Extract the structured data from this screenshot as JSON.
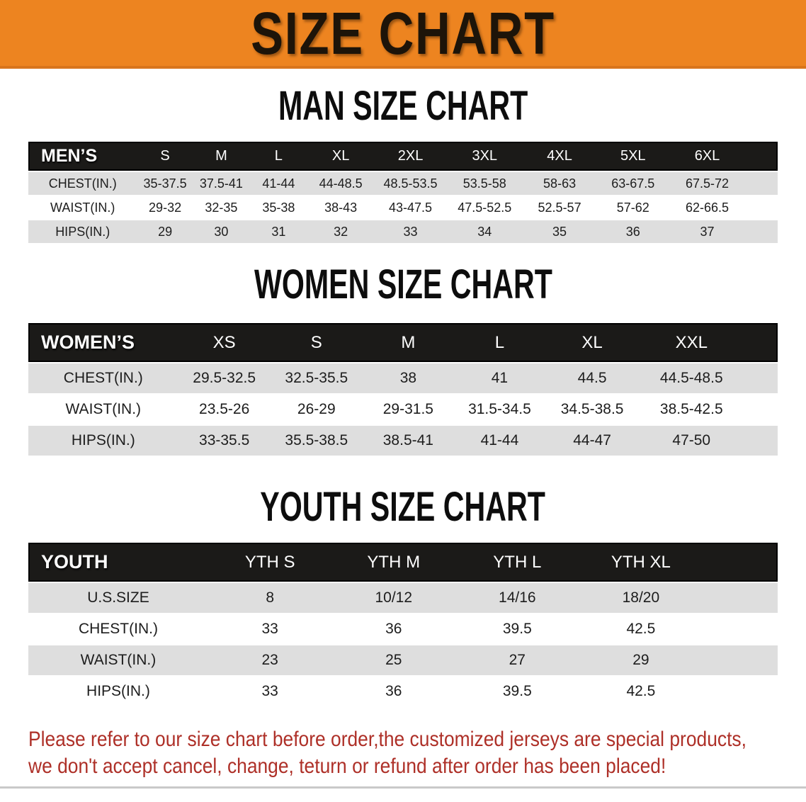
{
  "banner": {
    "title": "SIZE CHART"
  },
  "colors": {
    "banner_orange": "#ED8420",
    "header_black": "#1b1a18",
    "row_gray": "#DEDEDE",
    "disclaimer_red": "#AE3028"
  },
  "sections": {
    "men": {
      "heading": "MAN SIZE CHART",
      "table": {
        "header": [
          "MEN’S",
          "S",
          "M",
          "L",
          "XL",
          "2XL",
          "3XL",
          "4XL",
          "5XL",
          "6XL"
        ],
        "rows": [
          [
            "CHEST(IN.)",
            "35-37.5",
            "37.5-41",
            "41-44",
            "44-48.5",
            "48.5-53.5",
            "53.5-58",
            "58-63",
            "63-67.5",
            "67.5-72"
          ],
          [
            "WAIST(IN.)",
            "29-32",
            "32-35",
            "35-38",
            "38-43",
            "43-47.5",
            "47.5-52.5",
            "52.5-57",
            "57-62",
            "62-66.5"
          ],
          [
            "HIPS(IN.)",
            "29",
            "30",
            "31",
            "32",
            "33",
            "34",
            "35",
            "36",
            "37"
          ]
        ]
      }
    },
    "women": {
      "heading": "WOMEN SIZE CHART",
      "table": {
        "header": [
          "WOMEN’S",
          "XS",
          "S",
          "M",
          "L",
          "XL",
          "XXL"
        ],
        "rows": [
          [
            "CHEST(IN.)",
            "29.5-32.5",
            "32.5-35.5",
            "38",
            "41",
            "44.5",
            "44.5-48.5"
          ],
          [
            "WAIST(IN.)",
            "23.5-26",
            "26-29",
            "29-31.5",
            "31.5-34.5",
            "34.5-38.5",
            "38.5-42.5"
          ],
          [
            "HIPS(IN.)",
            "33-35.5",
            "35.5-38.5",
            "38.5-41",
            "41-44",
            "44-47",
            "47-50"
          ]
        ]
      }
    },
    "youth": {
      "heading": "YOUTH SIZE CHART",
      "table": {
        "header": [
          "YOUTH",
          "YTH S",
          "YTH M",
          "YTH L",
          "YTH XL"
        ],
        "rows": [
          [
            "U.S.SIZE",
            "8",
            "10/12",
            "14/16",
            "18/20"
          ],
          [
            "CHEST(IN.)",
            "33",
            "36",
            "39.5",
            "42.5"
          ],
          [
            "WAIST(IN.)",
            "23",
            "25",
            "27",
            "29"
          ],
          [
            "HIPS(IN.)",
            "33",
            "36",
            "39.5",
            "42.5"
          ]
        ]
      }
    }
  },
  "disclaimer": {
    "line1": "Please refer to our size chart before order,the customized jerseys are special products,",
    "line2": "we don't accept cancel, change, teturn or refund after order has been placed!"
  }
}
